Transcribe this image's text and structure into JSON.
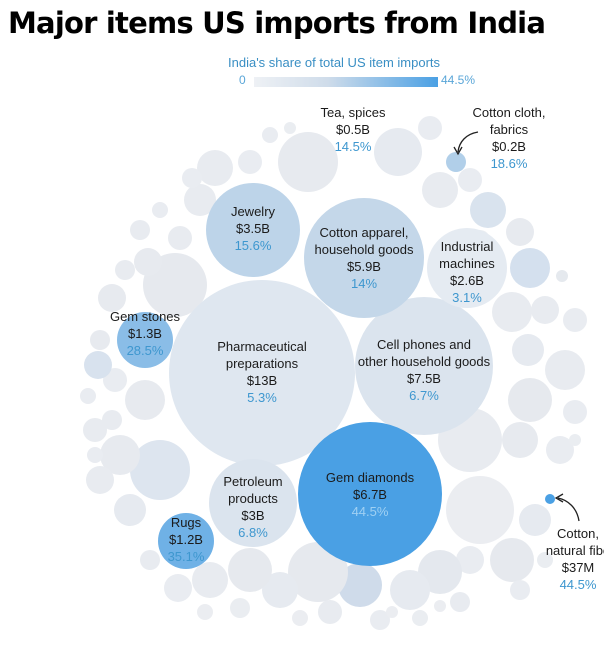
{
  "chart_data": {
    "type": "bubble",
    "title": "Major items US imports from India",
    "legend": {
      "title": "India's share of total US item imports",
      "min_label": "0",
      "max_label": "44.5%",
      "min": 0,
      "max": 44.5,
      "color_low": "#eef1f5",
      "color_high": "#4aa0e4"
    },
    "size_metric": "US import value",
    "items": [
      {
        "name": "Pharmaceutical preparations",
        "lines": [
          "Pharmaceutical",
          "preparations"
        ],
        "value_label": "$13B",
        "value_billion": 13,
        "share_label": "5.3%",
        "share_pct": 5.3
      },
      {
        "name": "Cell phones and other household goods",
        "lines": [
          "Cell phones and",
          "other household goods"
        ],
        "value_label": "$7.5B",
        "value_billion": 7.5,
        "share_label": "6.7%",
        "share_pct": 6.7
      },
      {
        "name": "Gem diamonds",
        "lines": [
          "Gem diamonds"
        ],
        "value_label": "$6.7B",
        "value_billion": 6.7,
        "share_label": "44.5%",
        "share_pct": 44.5
      },
      {
        "name": "Cotton apparel, household goods",
        "lines": [
          "Cotton apparel,",
          "household goods"
        ],
        "value_label": "$5.9B",
        "value_billion": 5.9,
        "share_label": "14%",
        "share_pct": 14
      },
      {
        "name": "Jewelry",
        "lines": [
          "Jewelry"
        ],
        "value_label": "$3.5B",
        "value_billion": 3.5,
        "share_label": "15.6%",
        "share_pct": 15.6
      },
      {
        "name": "Petroleum products",
        "lines": [
          "Petroleum",
          "products"
        ],
        "value_label": "$3B",
        "value_billion": 3,
        "share_label": "6.8%",
        "share_pct": 6.8
      },
      {
        "name": "Industrial machines",
        "lines": [
          "Industrial",
          "machines"
        ],
        "value_label": "$2.6B",
        "value_billion": 2.6,
        "share_label": "3.1%",
        "share_pct": 3.1
      },
      {
        "name": "Gem stones",
        "lines": [
          "Gem stones"
        ],
        "value_label": "$1.3B",
        "value_billion": 1.3,
        "share_label": "28.5%",
        "share_pct": 28.5
      },
      {
        "name": "Rugs",
        "lines": [
          "Rugs"
        ],
        "value_label": "$1.2B",
        "value_billion": 1.2,
        "share_label": "35.1%",
        "share_pct": 35.1
      },
      {
        "name": "Tea, spices",
        "lines": [
          "Tea, spices"
        ],
        "value_label": "$0.5B",
        "value_billion": 0.5,
        "share_label": "14.5%",
        "share_pct": 14.5
      },
      {
        "name": "Cotton cloth, fabrics",
        "lines": [
          "Cotton cloth,",
          "fabrics"
        ],
        "value_label": "$0.2B",
        "value_billion": 0.2,
        "share_label": "18.6%",
        "share_pct": 18.6
      },
      {
        "name": "Cotton, natural fiber",
        "lines": [
          "Cotton,",
          "natural fibe"
        ],
        "value_label": "$37M",
        "value_billion": 0.037,
        "share_label": "44.5%",
        "share_pct": 44.5
      }
    ]
  }
}
